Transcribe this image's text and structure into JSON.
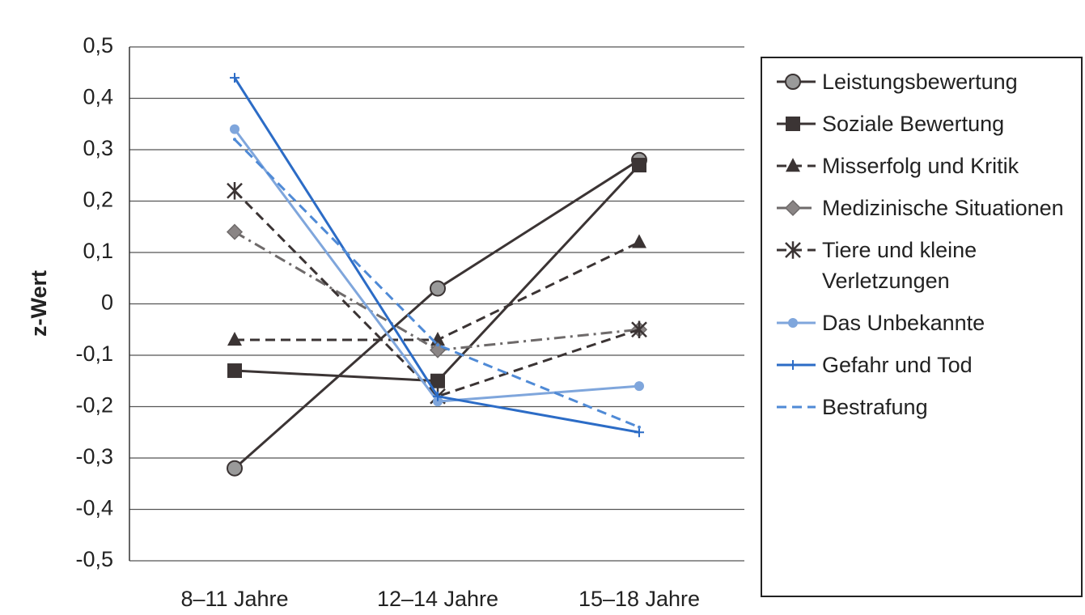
{
  "chart_data": {
    "type": "line",
    "ylabel": "z-Wert",
    "categories": [
      "8–11 Jahre",
      "12–14 Jahre",
      "15–18 Jahre"
    ],
    "ylim": [
      -0.5,
      0.5
    ],
    "yticks": [
      {
        "value": -0.5,
        "label": "-0,5"
      },
      {
        "value": -0.4,
        "label": "-0,4"
      },
      {
        "value": -0.3,
        "label": "-0,3"
      },
      {
        "value": -0.2,
        "label": "-0,2"
      },
      {
        "value": -0.1,
        "label": "-0,1"
      },
      0,
      {
        "value": 0.1,
        "label": "0,1"
      },
      {
        "value": 0.2,
        "label": "0,2"
      },
      {
        "value": 0.3,
        "label": "0,3"
      },
      {
        "value": 0.4,
        "label": "0,4"
      },
      {
        "value": 0.5,
        "label": "0,5"
      }
    ],
    "grid": true,
    "legend": "right",
    "series": [
      {
        "name": "Leistungsbewertung",
        "color": "#3b3434",
        "dash": "solid",
        "marker": "circle",
        "values": [
          -0.32,
          0.03,
          0.28
        ]
      },
      {
        "name": "Soziale Bewertung",
        "color": "#3b3434",
        "dash": "solid",
        "marker": "square",
        "values": [
          -0.13,
          -0.15,
          0.27
        ]
      },
      {
        "name": "Misserfolg und Kritik",
        "color": "#3b3434",
        "dash": "dashed",
        "marker": "triangle",
        "values": [
          -0.07,
          -0.07,
          0.12
        ]
      },
      {
        "name": "Medizinische Situationen",
        "color": "#6e6a6a",
        "dash": "dashdot",
        "marker": "diamond",
        "values": [
          0.14,
          -0.09,
          -0.05
        ]
      },
      {
        "name": "Tiere und kleine Verletzungen",
        "color": "#3b3434",
        "dash": "dashed",
        "marker": "asterisk",
        "values": [
          0.22,
          -0.18,
          -0.05
        ]
      },
      {
        "name": "Das Unbekannte",
        "color": "#7fa6dc",
        "dash": "solid",
        "marker": "dot",
        "values": [
          0.34,
          -0.19,
          -0.16
        ]
      },
      {
        "name": "Gefahr und Tod",
        "color": "#2c6cc6",
        "dash": "solid",
        "marker": "plus",
        "values": [
          0.44,
          -0.18,
          -0.25
        ]
      },
      {
        "name": "Bestrafung",
        "color": "#4f8ad6",
        "dash": "dashed",
        "marker": "none",
        "values": [
          0.32,
          -0.08,
          -0.24
        ]
      }
    ]
  }
}
